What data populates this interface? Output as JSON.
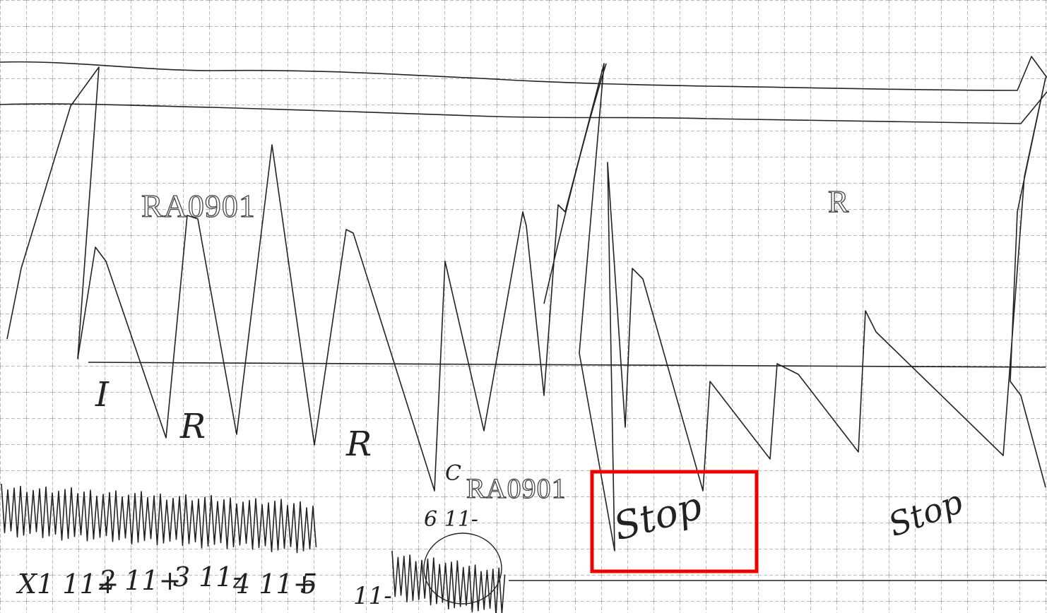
{
  "stamps": [
    "RA0901",
    "RA0901"
  ],
  "marker": "R",
  "handwriting": [
    "I",
    "R",
    "R",
    "C",
    "X1 11+",
    "2 11+",
    "3 11-",
    "4 11+",
    "5",
    "11-",
    "6 11-",
    "Stop",
    "Stop"
  ]
}
